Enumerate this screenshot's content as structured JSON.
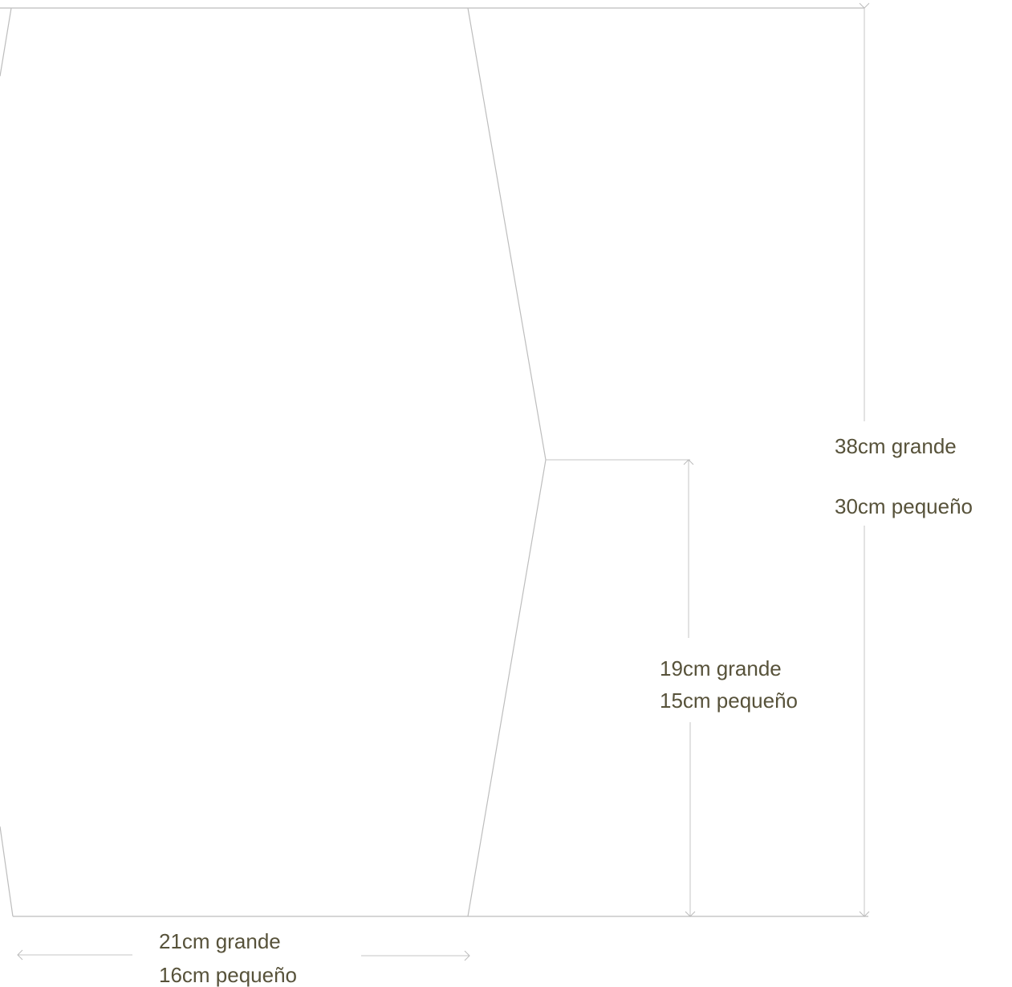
{
  "labels": {
    "height_total": {
      "large": "38cm grande",
      "small": "30cm pequeño"
    },
    "height_half": {
      "large": "19cm grande",
      "small": "15cm pequeño"
    },
    "width_base": {
      "large": "21cm grande",
      "small": "16cm pequeño"
    }
  },
  "colors": {
    "outline": "#bdbdbd",
    "dimension_lines": "#c4c4c4",
    "label_text": "#57523a"
  }
}
